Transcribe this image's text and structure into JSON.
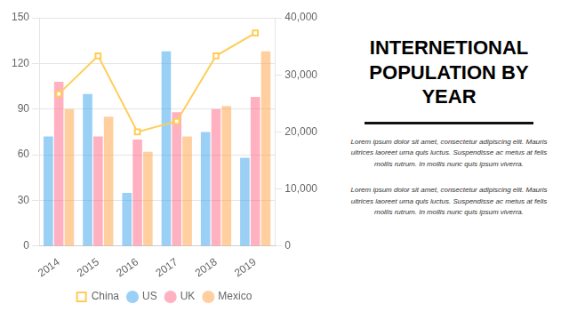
{
  "chart_data": {
    "type": "bar",
    "title": [
      "INTERNETIONAL",
      "POPULATION BY",
      "YEAR"
    ],
    "annotations": [
      "Lorem ipsum dolor sit amet, consectetur adipiscing elit. Mauris\nultrices laoreet urna quis luctus. Suspendisse ac metus at felis\nmollis rutrum. In mollis nunc quis ipsum viverra.",
      "Lorem ipsum dolor sit amet, consectetur adipiscing elit. Mauris\nultrices laoreet urna quis luctus. Suspendisse ac metus at felis\nmollis rutrum. In mollis nunc quis ipsum viverra."
    ],
    "categories": [
      "2014",
      "2015",
      "2016",
      "2017",
      "2018",
      "2019"
    ],
    "series": [
      {
        "name": "US",
        "type": "bar",
        "values": [
          72,
          100,
          35,
          128,
          75,
          58
        ]
      },
      {
        "name": "UK",
        "type": "bar",
        "values": [
          108,
          72,
          70,
          88,
          90,
          98
        ]
      },
      {
        "name": "Mexico",
        "type": "bar",
        "values": [
          90,
          85,
          62,
          72,
          92,
          128
        ]
      },
      {
        "name": "China",
        "type": "line",
        "marker": "square",
        "values": [
          100,
          125,
          75,
          82,
          125,
          140
        ]
      }
    ],
    "ylim": [
      0,
      150
    ],
    "yticks": [
      0,
      30,
      60,
      90,
      120,
      150
    ],
    "y2lim": [
      0,
      40000
    ],
    "y2ticks": [
      0,
      {
        "value": 10000,
        "label": "10,000"
      },
      {
        "value": 20000,
        "label": "20,000"
      },
      {
        "value": 30000,
        "label": "30,000"
      },
      {
        "value": 40000,
        "label": "40,000"
      }
    ],
    "grid": true,
    "legend": "bottom"
  }
}
